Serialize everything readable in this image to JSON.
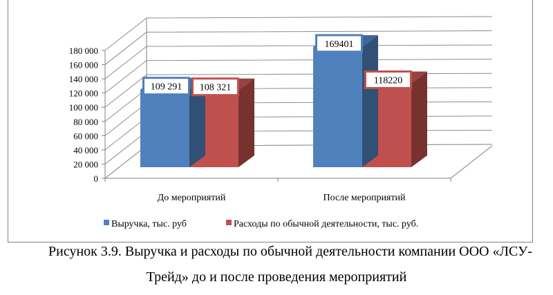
{
  "chart_data": {
    "type": "bar",
    "categories": [
      "До мероприятий",
      "После мероприятий"
    ],
    "series": [
      {
        "name": "Выручка, тыс. руб",
        "values": [
          109291,
          169401
        ],
        "labels": [
          "109 291",
          "169401"
        ],
        "color": "#4f81bd"
      },
      {
        "name": "Расходы по обычной деятельности, тыс. руб.",
        "values": [
          108321,
          118220
        ],
        "labels": [
          "108 321",
          "118220"
        ],
        "color": "#c0504d"
      }
    ],
    "ylim": [
      0,
      180000
    ],
    "yticks": [
      "0",
      "20 000",
      "40 000",
      "60 000",
      "80 000",
      "100 000",
      "120 000",
      "140 000",
      "160 000",
      "180 000"
    ],
    "grid": true,
    "legend_position": "bottom",
    "three_d": true
  },
  "caption": {
    "line1": "Рисунок 3.9. Выручка и расходы по обычной деятельности компании ООО «ЛСУ-",
    "line2": "Трейд»  до и после проведения мероприятий"
  }
}
